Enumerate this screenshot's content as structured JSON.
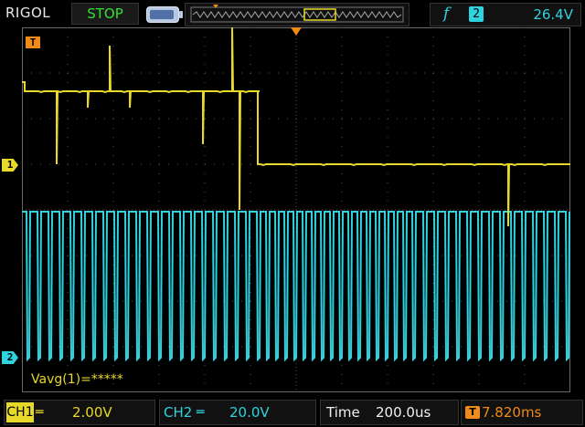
{
  "header": {
    "brand": "RIGOL",
    "run_state": "STOP",
    "trigger": {
      "slope_icon": "rising-edge-icon",
      "source": "2",
      "level": "26.4V"
    }
  },
  "markers": {
    "trigger_marker": "T",
    "ch1_marker": "1",
    "ch2_marker": "2"
  },
  "measurement": "Vavg(1)=*****",
  "footer": {
    "ch1": {
      "label": "CH1",
      "coupling": "═",
      "scale": "2.00V"
    },
    "ch2": {
      "label": "CH2",
      "coupling": "═",
      "scale": "20.0V"
    },
    "time": {
      "label": "Time",
      "scale": "200.0us"
    },
    "offset": {
      "icon": "T",
      "value": "7.820ms"
    }
  },
  "colors": {
    "ch1": "#e6d92a",
    "ch2": "#2fd3e0",
    "trigger": "#f08a18",
    "grid": "#5a5a5a",
    "run_state": "#33e030"
  }
}
